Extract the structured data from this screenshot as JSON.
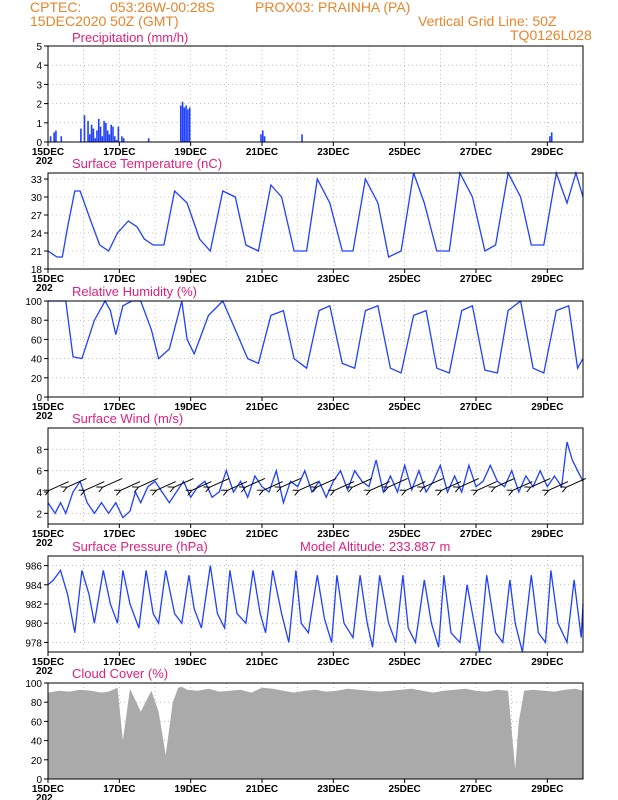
{
  "header": {
    "source": "CPTEC:",
    "coords": "053:26W-00:28S",
    "station": "PROX03: PRAINHA (PA)",
    "date": "15DEC2020 50Z (GMT)",
    "grid_note": "Vertical Grid Line: 50Z",
    "model_code": "TQ0126L028"
  },
  "colors": {
    "header": "#e8842a",
    "title": "#e0207e",
    "series": "#2040ff",
    "bars": "#2040ff",
    "cloud": "#aaaaaa",
    "grid": "#999999"
  },
  "x_labels": [
    "15DEC",
    "17DEC",
    "19DEC",
    "21DEC",
    "23DEC",
    "25DEC",
    "27DEC",
    "29DEC"
  ],
  "x_sublabel": "202",
  "chart_data": [
    {
      "id": "precip",
      "type": "bar",
      "title": "Precipitation (mm/h)",
      "ylim": [
        0,
        5
      ],
      "yticks": [
        0,
        1,
        2,
        3,
        4,
        5
      ],
      "x_days": [
        0,
        15
      ],
      "x": [
        0.05,
        0.15,
        0.2,
        0.35,
        0.9,
        1.0,
        1.1,
        1.15,
        1.2,
        1.25,
        1.3,
        1.35,
        1.4,
        1.45,
        1.5,
        1.55,
        1.6,
        1.65,
        1.7,
        1.75,
        1.8,
        1.85,
        1.9,
        1.95,
        2.05,
        2.1,
        2.8,
        3.7,
        3.75,
        3.8,
        3.85,
        3.9,
        3.95,
        5.95,
        6.0,
        6.05,
        7.1,
        14.05,
        14.1
      ],
      "values": [
        0.3,
        0.5,
        0.6,
        0.3,
        0.7,
        1.4,
        1.1,
        0.4,
        0.9,
        0.7,
        0.2,
        0.6,
        1.2,
        0.8,
        0.3,
        1.1,
        1.0,
        0.6,
        0.4,
        0.9,
        0.8,
        0.3,
        0.1,
        0.8,
        0.3,
        0.2,
        0.2,
        1.9,
        2.1,
        1.8,
        1.9,
        1.7,
        1.8,
        0.4,
        0.6,
        0.3,
        0.4,
        0.3,
        0.5
      ],
      "grid": true
    },
    {
      "id": "temp",
      "type": "line",
      "title": "Surface Temperature (nC)",
      "ylim": [
        18,
        34
      ],
      "yticks": [
        18,
        21,
        24,
        27,
        30,
        33
      ],
      "x_days": [
        0,
        15
      ],
      "x": [
        0,
        0.25,
        0.4,
        0.55,
        0.75,
        0.9,
        1.2,
        1.45,
        1.7,
        1.95,
        2.25,
        2.5,
        2.7,
        2.95,
        3.25,
        3.55,
        3.9,
        4.25,
        4.55,
        4.9,
        5.25,
        5.55,
        5.9,
        6.25,
        6.55,
        6.9,
        7.25,
        7.55,
        7.9,
        8.25,
        8.55,
        8.9,
        9.25,
        9.55,
        9.9,
        10.25,
        10.55,
        10.9,
        11.25,
        11.55,
        11.9,
        12.25,
        12.55,
        12.9,
        13.25,
        13.55,
        13.9,
        14.25,
        14.55,
        14.8,
        15
      ],
      "values": [
        21,
        20,
        20,
        25,
        31,
        31,
        26,
        22,
        21,
        24,
        26,
        25,
        23,
        22,
        22,
        31,
        29,
        23,
        21,
        31,
        30,
        22,
        21,
        32,
        30,
        21,
        21,
        33,
        29,
        21,
        21,
        33,
        29,
        20,
        21,
        34,
        29,
        21,
        21,
        34,
        30,
        21,
        22,
        34,
        30,
        22,
        22,
        34,
        29,
        34,
        30
      ],
      "grid": true
    },
    {
      "id": "rh",
      "type": "line",
      "title": "Relative Humidity (%)",
      "ylim": [
        0,
        100
      ],
      "yticks": [
        0,
        20,
        40,
        60,
        80,
        100
      ],
      "x_days": [
        0,
        15
      ],
      "x": [
        0,
        0.2,
        0.5,
        0.7,
        0.95,
        1.3,
        1.6,
        1.75,
        1.9,
        2.1,
        2.35,
        2.6,
        2.9,
        3.1,
        3.4,
        3.75,
        3.9,
        4.1,
        4.5,
        4.9,
        5.25,
        5.6,
        5.9,
        6.25,
        6.6,
        6.9,
        7.25,
        7.6,
        7.9,
        8.25,
        8.6,
        8.9,
        9.25,
        9.6,
        9.9,
        10.25,
        10.6,
        10.9,
        11.25,
        11.6,
        11.9,
        12.25,
        12.6,
        12.9,
        13.25,
        13.6,
        13.9,
        14.25,
        14.6,
        14.85,
        15
      ],
      "values": [
        100,
        100,
        100,
        42,
        40,
        80,
        100,
        90,
        65,
        95,
        100,
        100,
        70,
        40,
        50,
        100,
        60,
        45,
        85,
        100,
        70,
        40,
        35,
        85,
        90,
        40,
        30,
        90,
        95,
        35,
        30,
        90,
        95,
        30,
        25,
        85,
        90,
        30,
        25,
        90,
        95,
        28,
        25,
        90,
        100,
        30,
        25,
        90,
        95,
        30,
        40
      ],
      "grid": true
    },
    {
      "id": "wind",
      "type": "line",
      "title": "Surface Wind (m/s)",
      "ylim": [
        1,
        10
      ],
      "yticks": [
        2,
        4,
        6,
        8
      ],
      "x_days": [
        0,
        15
      ],
      "x": [
        0,
        0.2,
        0.35,
        0.5,
        0.7,
        0.9,
        1.1,
        1.3,
        1.5,
        1.7,
        1.9,
        2.1,
        2.3,
        2.45,
        2.6,
        2.8,
        3.0,
        3.2,
        3.4,
        3.6,
        3.8,
        4.0,
        4.2,
        4.4,
        4.6,
        4.8,
        5.0,
        5.2,
        5.4,
        5.6,
        5.8,
        6.0,
        6.2,
        6.4,
        6.6,
        6.8,
        7.0,
        7.2,
        7.4,
        7.6,
        7.8,
        8.0,
        8.2,
        8.4,
        8.6,
        8.8,
        9.0,
        9.2,
        9.4,
        9.6,
        9.8,
        10.0,
        10.2,
        10.4,
        10.6,
        10.8,
        11.0,
        11.2,
        11.4,
        11.6,
        11.8,
        12.0,
        12.2,
        12.4,
        12.6,
        12.8,
        13.0,
        13.2,
        13.4,
        13.6,
        13.8,
        14.0,
        14.2,
        14.4,
        14.55,
        14.7,
        14.85,
        15
      ],
      "values": [
        3,
        2,
        3,
        2,
        4,
        5,
        3,
        2,
        3,
        2,
        3,
        1.6,
        2.2,
        4,
        3,
        4.5,
        5,
        4,
        3,
        4,
        5,
        3.5,
        4.5,
        5,
        3.5,
        4,
        6,
        4,
        5,
        3.5,
        5.5,
        4.5,
        4,
        6,
        3,
        5,
        4.5,
        6,
        4,
        5,
        3.5,
        5,
        6,
        4.2,
        6,
        5,
        4.5,
        7,
        4,
        5.5,
        4,
        6.5,
        4.2,
        6,
        4,
        5,
        6.5,
        4,
        5.5,
        4,
        6.5,
        4.5,
        5,
        6.5,
        5,
        4.5,
        6,
        4,
        5.5,
        4.5,
        6,
        4.5,
        5.5,
        4.5,
        8.7,
        7,
        6,
        5
      ],
      "arrows_x": [
        0.3,
        0.8,
        1.3,
        1.8,
        2.3,
        2.8,
        3.3,
        3.8,
        4.3,
        4.8,
        5.3,
        5.8,
        6.3,
        6.8,
        7.3,
        7.8,
        8.3,
        8.8,
        9.3,
        9.8,
        10.3,
        10.8,
        11.3,
        11.8,
        12.3,
        12.8,
        13.3,
        13.8,
        14.3,
        14.8
      ],
      "grid": true
    },
    {
      "id": "pressure",
      "type": "line",
      "title": "Surface Pressure (hPa)",
      "annotation": "Model Altitude: 233.887  m",
      "ylim": [
        977,
        987
      ],
      "yticks": [
        978,
        980,
        982,
        984,
        986
      ],
      "x_days": [
        0,
        15
      ],
      "x": [
        0,
        0.15,
        0.35,
        0.55,
        0.75,
        0.95,
        1.15,
        1.3,
        1.55,
        1.75,
        1.95,
        2.1,
        2.3,
        2.55,
        2.75,
        2.95,
        3.1,
        3.3,
        3.55,
        3.75,
        3.95,
        4.1,
        4.3,
        4.55,
        4.75,
        4.95,
        5.1,
        5.3,
        5.55,
        5.75,
        5.95,
        6.1,
        6.3,
        6.55,
        6.75,
        6.95,
        7.1,
        7.3,
        7.55,
        7.75,
        7.95,
        8.1,
        8.3,
        8.55,
        8.75,
        8.95,
        9.1,
        9.3,
        9.55,
        9.75,
        9.95,
        10.1,
        10.3,
        10.55,
        10.75,
        10.95,
        11.1,
        11.3,
        11.55,
        11.75,
        11.95,
        12.1,
        12.3,
        12.55,
        12.75,
        12.95,
        13.1,
        13.3,
        13.55,
        13.75,
        13.95,
        14.1,
        14.3,
        14.55,
        14.75,
        14.95,
        15
      ],
      "values": [
        984,
        984.5,
        985.5,
        983,
        979,
        985.5,
        983,
        980,
        985.5,
        982,
        980,
        985.5,
        982,
        979.5,
        985.5,
        981,
        980,
        985.5,
        981,
        980,
        985,
        981.5,
        979.5,
        986,
        981,
        979.5,
        985.5,
        981,
        980,
        985.5,
        981,
        979,
        985.5,
        981,
        978,
        985.5,
        980,
        979,
        985,
        980.5,
        978,
        985,
        980,
        978.5,
        985,
        980,
        977.5,
        985,
        980,
        978,
        985,
        979.5,
        978,
        984.5,
        980,
        977.5,
        985,
        979,
        978,
        984,
        980,
        977,
        985,
        979,
        978,
        984.5,
        980,
        977,
        985,
        979,
        978,
        985.5,
        980,
        978,
        984.5,
        978.5,
        982
      ],
      "grid": true
    },
    {
      "id": "cloud",
      "type": "area",
      "title": "Cloud Cover (%)",
      "ylim": [
        0,
        100
      ],
      "yticks": [
        0,
        20,
        40,
        60,
        80,
        100
      ],
      "x_days": [
        0,
        15
      ],
      "x": [
        0,
        0.3,
        0.6,
        0.9,
        1.2,
        1.5,
        1.7,
        1.95,
        2.1,
        2.3,
        2.6,
        2.9,
        3.1,
        3.3,
        3.5,
        3.65,
        3.75,
        3.9,
        4.2,
        4.5,
        4.8,
        5.1,
        5.4,
        5.7,
        6.0,
        6.3,
        6.6,
        6.9,
        7.2,
        7.5,
        7.8,
        8.1,
        8.4,
        8.7,
        9.0,
        9.3,
        9.6,
        9.9,
        10.2,
        10.5,
        10.8,
        11.1,
        11.4,
        11.7,
        12.0,
        12.3,
        12.6,
        12.9,
        13.1,
        13.2,
        13.35,
        13.6,
        13.9,
        14.2,
        14.5,
        14.8,
        15
      ],
      "values": [
        90,
        92,
        91,
        93,
        92,
        90,
        91,
        95,
        40,
        94,
        70,
        92,
        70,
        25,
        80,
        95,
        96,
        93,
        92,
        94,
        91,
        92,
        93,
        90,
        95,
        94,
        92,
        90,
        92,
        93,
        91,
        92,
        94,
        93,
        92,
        91,
        92,
        93,
        94,
        92,
        90,
        92,
        93,
        94,
        92,
        91,
        93,
        92,
        10,
        60,
        92,
        93,
        92,
        91,
        93,
        94,
        92
      ],
      "grid": true
    }
  ]
}
